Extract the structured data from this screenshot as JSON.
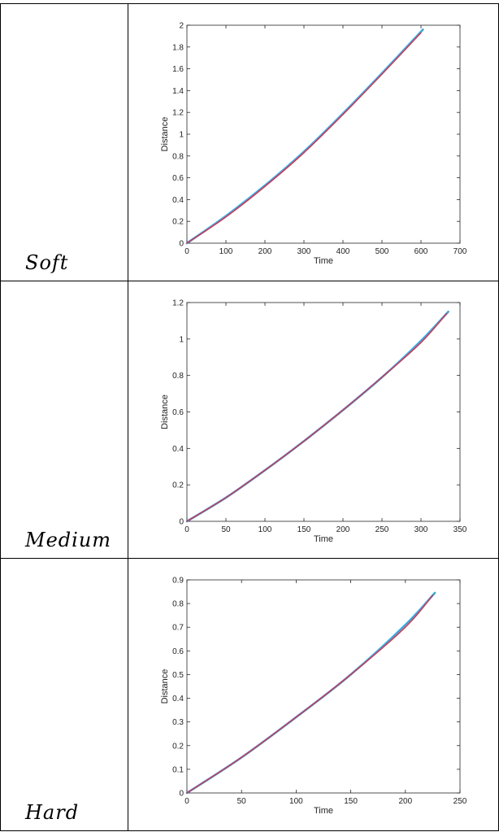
{
  "rows": [
    {
      "label": "Soft",
      "chart_data": {
        "type": "line",
        "xlabel": "Time",
        "ylabel": "Distance",
        "xlim": [
          0,
          700
        ],
        "ylim": [
          0,
          2
        ],
        "xticks": [
          0,
          100,
          200,
          300,
          400,
          500,
          600,
          700
        ],
        "yticks": [
          0,
          0.2,
          0.4,
          0.6,
          0.8,
          1,
          1.2,
          1.4,
          1.6,
          1.8,
          2
        ],
        "ytick_labels": [
          "0",
          "0.2",
          "0.4",
          "0.6",
          "0.8",
          "1",
          "1.2",
          "1.4",
          "1.6",
          "1.8",
          "2"
        ],
        "series": [
          {
            "color": "#3aa7d9",
            "x": [
              0,
              100,
              200,
              300,
              400,
              500,
              605
            ],
            "y": [
              0,
              0.25,
              0.53,
              0.84,
              1.19,
              1.56,
              1.96
            ]
          },
          {
            "color": "#d62f52",
            "x": [
              0,
              100,
              200,
              300,
              400,
              500,
              600
            ],
            "y": [
              0,
              0.24,
              0.52,
              0.83,
              1.18,
              1.55,
              1.93
            ]
          }
        ]
      }
    },
    {
      "label": "Medium",
      "chart_data": {
        "type": "line",
        "xlabel": "Time",
        "ylabel": "Distance",
        "xlim": [
          0,
          350
        ],
        "ylim": [
          0,
          1.2
        ],
        "xticks": [
          0,
          50,
          100,
          150,
          200,
          250,
          300,
          350
        ],
        "yticks": [
          0,
          0.2,
          0.4,
          0.6,
          0.8,
          1,
          1.2
        ],
        "ytick_labels": [
          "0",
          "0.2",
          "0.4",
          "0.6",
          "0.8",
          "1",
          "1.2"
        ],
        "series": [
          {
            "color": "#3aa7d9",
            "x": [
              0,
              50,
              100,
              150,
              200,
              250,
              300,
              335
            ],
            "y": [
              0,
              0.13,
              0.28,
              0.44,
              0.61,
              0.79,
              0.99,
              1.15
            ]
          },
          {
            "color": "#d62f52",
            "x": [
              0,
              50,
              100,
              150,
              200,
              250,
              300,
              333
            ],
            "y": [
              0,
              0.13,
              0.28,
              0.44,
              0.61,
              0.79,
              0.98,
              1.14
            ]
          }
        ]
      }
    },
    {
      "label": "Hard",
      "chart_data": {
        "type": "line",
        "xlabel": "Time",
        "ylabel": "Distance",
        "xlim": [
          0,
          250
        ],
        "ylim": [
          0,
          0.9
        ],
        "xticks": [
          0,
          50,
          100,
          150,
          200,
          250
        ],
        "yticks": [
          0,
          0.1,
          0.2,
          0.3,
          0.4,
          0.5,
          0.6,
          0.7,
          0.8,
          0.9
        ],
        "ytick_labels": [
          "0",
          "0.1",
          "0.2",
          "0.3",
          "0.4",
          "0.5",
          "0.6",
          "0.7",
          "0.8",
          "0.9"
        ],
        "series": [
          {
            "color": "#3aa7d9",
            "x": [
              0,
              50,
              100,
              150,
              200,
              227
            ],
            "y": [
              0,
              0.15,
              0.32,
              0.5,
              0.71,
              0.845
            ]
          },
          {
            "color": "#d62f52",
            "x": [
              0,
              50,
              100,
              150,
              200,
              225
            ],
            "y": [
              0,
              0.15,
              0.32,
              0.5,
              0.7,
              0.835
            ]
          }
        ]
      }
    }
  ]
}
